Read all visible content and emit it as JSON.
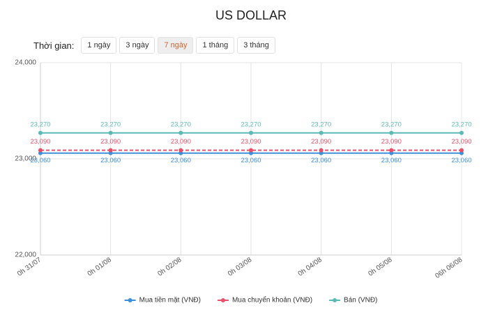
{
  "time_filter": {
    "label": "Thời gian:",
    "options": [
      "1 ngày",
      "3 ngày",
      "7 ngày",
      "1 tháng",
      "3 tháng"
    ]
  },
  "chart_data": {
    "type": "line",
    "title": "US DOLLAR",
    "categories": [
      "0h 31/07",
      "0h 01/08",
      "0h 02/08",
      "0h 03/08",
      "0h 04/08",
      "0h 05/08",
      "06h 06/08"
    ],
    "ylim": [
      22000,
      24000
    ],
    "yticks": [
      {
        "value": 22000,
        "label": "22,000"
      },
      {
        "value": 23000,
        "label": "23,000"
      },
      {
        "value": 24000,
        "label": "24,000"
      }
    ],
    "grid": true,
    "legend": "bottom",
    "series": [
      {
        "name": "Mua tiền mặt (VNĐ)",
        "color": "#3b8fdc",
        "line_style": "solid",
        "values": [
          23060,
          23060,
          23060,
          23060,
          23060,
          23060,
          23060
        ],
        "value_labels": [
          "23,060",
          "23,060",
          "23,060",
          "23,060",
          "23,060",
          "23,060",
          "23,060"
        ]
      },
      {
        "name": "Mua chuyển khoản (VNĐ)",
        "color": "#e8506a",
        "line_style": "dashed",
        "values": [
          23090,
          23090,
          23090,
          23090,
          23090,
          23090,
          23090
        ],
        "value_labels": [
          "23,090",
          "23,090",
          "23,090",
          "23,090",
          "23,090",
          "23,090",
          "23,090"
        ]
      },
      {
        "name": "Bán (VNĐ)",
        "color": "#5bbab5",
        "line_style": "solid",
        "values": [
          23270,
          23270,
          23270,
          23270,
          23270,
          23270,
          23270
        ],
        "value_labels": [
          "23,270",
          "23,270",
          "23,270",
          "23,270",
          "23,270",
          "23,270",
          "23,270"
        ]
      }
    ]
  }
}
